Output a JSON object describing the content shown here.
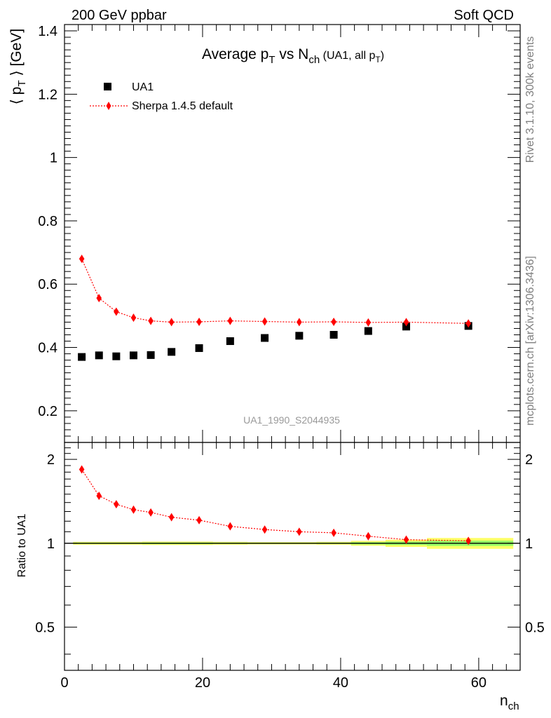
{
  "header": {
    "left": "200 GeV ppbar",
    "right": "Soft QCD"
  },
  "side_text": {
    "rivet": "Rivet 3.1.10,  300k events",
    "mcplots": "mcplots.cern.ch [arXiv:1306.3436]"
  },
  "chart_data": [
    {
      "type": "scatter",
      "title": {
        "main": "Average p",
        "sub1": "T",
        "mid": " vs N",
        "sub2": "ch",
        "small": " (UA1, all p",
        "sub3": "T",
        "end": ")"
      },
      "ylabel": {
        "pre": "⟨ p",
        "sub": "T",
        "post": " ⟩ [GeV]"
      },
      "watermark": "UA1_1990_S2044935",
      "xlim": [
        0,
        66
      ],
      "ylim": [
        0.1,
        1.42
      ],
      "yticks": [
        0.2,
        0.4,
        0.6,
        0.8,
        1.0,
        1.2,
        1.4
      ],
      "ytick_labels": [
        "0.2",
        "0.4",
        "0.6",
        "0.8",
        "1",
        "1.2",
        "1.4"
      ],
      "legend_position": "top-left",
      "series": [
        {
          "name": "UA1",
          "marker": "square",
          "color": "#000000",
          "x": [
            2.5,
            5,
            7.5,
            10,
            12.5,
            15.5,
            19.5,
            24,
            29,
            34,
            39,
            44,
            49.5,
            58.5
          ],
          "y": [
            0.37,
            0.375,
            0.372,
            0.375,
            0.376,
            0.386,
            0.398,
            0.42,
            0.43,
            0.437,
            0.44,
            0.452,
            0.466,
            0.468
          ]
        },
        {
          "name": "Sherpa 1.4.5 default",
          "marker": "diamond",
          "line": "dotted",
          "color": "#ff0000",
          "x": [
            2.5,
            5,
            7.5,
            10,
            12.5,
            15.5,
            19.5,
            24,
            29,
            34,
            39,
            44,
            49.5,
            58.5
          ],
          "y": [
            0.68,
            0.556,
            0.513,
            0.494,
            0.484,
            0.48,
            0.481,
            0.484,
            0.482,
            0.48,
            0.481,
            0.479,
            0.48,
            0.476
          ]
        }
      ]
    },
    {
      "type": "scatter",
      "ylabel": "Ratio to UA1",
      "xlabel": {
        "main": "n",
        "sub": "ch"
      },
      "xlim": [
        0,
        66
      ],
      "ylim": [
        0.35,
        2.3
      ],
      "xticks": [
        0,
        20,
        40,
        60
      ],
      "xtick_labels": [
        "0",
        "20",
        "40",
        "60"
      ],
      "yticks": [
        0.5,
        1,
        2
      ],
      "ytick_labels": [
        "0.5",
        "1",
        "2"
      ],
      "reference_line": 1,
      "uncertainty_band": {
        "x": [
          1.25,
          3.75,
          6.25,
          8.75,
          11.25,
          14,
          17.5,
          21.5,
          26.5,
          31.5,
          36.5,
          41.5,
          46.5,
          52.5,
          65
        ],
        "yellow_half_width": [
          0.012,
          0.012,
          0.012,
          0.012,
          0.014,
          0.014,
          0.014,
          0.012,
          0.01,
          0.01,
          0.012,
          0.02,
          0.03,
          0.045,
          0.045
        ],
        "green_half_width": [
          0.006,
          0.006,
          0.006,
          0.006,
          0.007,
          0.007,
          0.007,
          0.006,
          0.005,
          0.005,
          0.006,
          0.01,
          0.015,
          0.022,
          0.022
        ],
        "yellow_color": "#ffff66",
        "green_color": "#99ff66"
      },
      "series": [
        {
          "name": "Sherpa 1.4.5 default",
          "marker": "diamond",
          "line": "dotted",
          "color": "#ff0000",
          "x": [
            2.5,
            5,
            7.5,
            10,
            12.5,
            15.5,
            19.5,
            24,
            29,
            34,
            39,
            44,
            49.5,
            58.5
          ],
          "y": [
            1.84,
            1.48,
            1.38,
            1.32,
            1.29,
            1.24,
            1.21,
            1.15,
            1.12,
            1.1,
            1.09,
            1.06,
            1.03,
            1.02
          ]
        }
      ]
    }
  ]
}
